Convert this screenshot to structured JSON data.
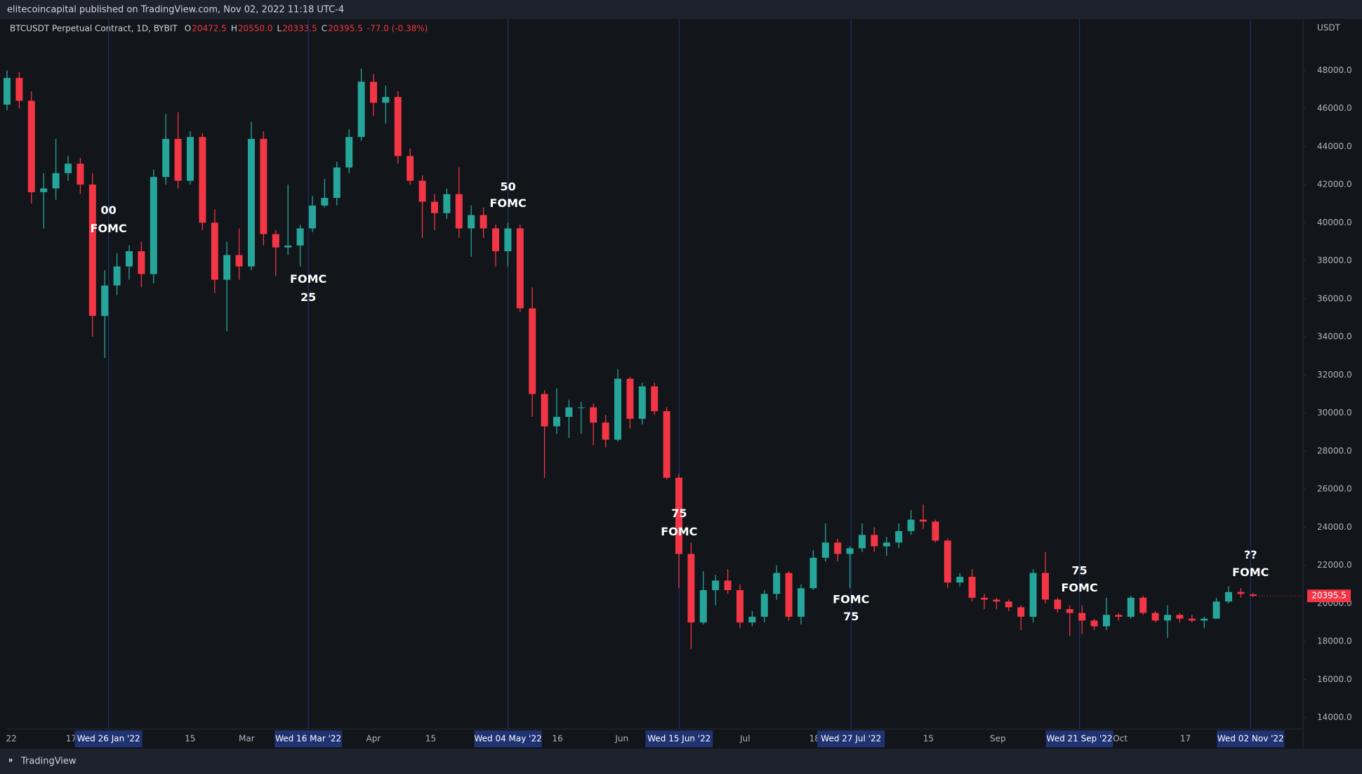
{
  "header": {
    "published": "elitecoincapital published on TradingView.com, Nov 02, 2022 11:18 UTC-4",
    "footer": "TradingView"
  },
  "chart_data": {
    "type": "candlestick",
    "symbol": "BTCUSDT Perpetual Contract, 1D, BYBIT",
    "legend_values": [
      {
        "key": "O",
        "text": "20472.5"
      },
      {
        "key": "H",
        "text": "20550.0"
      },
      {
        "key": "L",
        "text": "20333.5"
      },
      {
        "key": "C",
        "text": "20395.5"
      }
    ],
    "change": "-77.0 (-0.38%)",
    "axis_unit": "USDT",
    "last_price_label": "20395.5",
    "up_color": "#26a69a",
    "down_color": "#f23645",
    "ylim": [
      13400,
      50700
    ],
    "yticks": [
      {
        "value": 14000,
        "label": "14000.0"
      },
      {
        "value": 16000,
        "label": "16000.0"
      },
      {
        "value": 18000,
        "label": "18000.0"
      },
      {
        "value": 20000,
        "label": "20000.0"
      },
      {
        "value": 22000,
        "label": "22000.0"
      },
      {
        "value": 24000,
        "label": "24000.0"
      },
      {
        "value": 26000,
        "label": "26000.0"
      },
      {
        "value": 28000,
        "label": "28000.0"
      },
      {
        "value": 30000,
        "label": "30000.0"
      },
      {
        "value": 32000,
        "label": "32000.0"
      },
      {
        "value": 34000,
        "label": "34000.0"
      },
      {
        "value": 36000,
        "label": "36000.0"
      },
      {
        "value": 38000,
        "label": "38000.0"
      },
      {
        "value": 40000,
        "label": "40000.0"
      },
      {
        "value": 42000,
        "label": "42000.0"
      },
      {
        "value": 44000,
        "label": "44000.0"
      },
      {
        "value": 46000,
        "label": "46000.0"
      },
      {
        "value": 48000,
        "label": "48000.0"
      }
    ],
    "grid": false,
    "xtick_labels": [
      "22",
      "17",
      "15",
      "Mar",
      "Apr",
      "15",
      "16",
      "Jun",
      "Jul",
      "18",
      "15",
      "Sep",
      "Oct",
      "17"
    ],
    "fomc_dates": [
      "Wed 26 Jan '22",
      "Wed 16 Mar '22",
      "Wed 04 May '22",
      "Wed 15 Jun '22",
      "Wed 27 Jul '22",
      "Wed 21 Sep '22",
      "Wed 02 Nov '22"
    ],
    "annotations": [
      [
        "00",
        "FOMC"
      ],
      [
        "FOMC",
        "25"
      ],
      [
        "50",
        "FOMC"
      ],
      [
        "75",
        "FOMC"
      ],
      [
        "FOMC",
        "75"
      ],
      [
        "75",
        "FOMC"
      ],
      [
        "??",
        "FOMC"
      ]
    ],
    "ohlc": [
      [
        46200,
        48000,
        45900,
        47600
      ],
      [
        47600,
        47900,
        46000,
        46400
      ],
      [
        46400,
        46900,
        41000,
        41600
      ],
      [
        41600,
        42600,
        39700,
        41800
      ],
      [
        41800,
        44400,
        41200,
        42600
      ],
      [
        42600,
        43500,
        42200,
        43100
      ],
      [
        43100,
        43400,
        41500,
        42000
      ],
      [
        42000,
        42600,
        34000,
        35100
      ],
      [
        35100,
        37500,
        32900,
        36700
      ],
      [
        36700,
        38400,
        36200,
        37700
      ],
      [
        37700,
        38800,
        37000,
        38500
      ],
      [
        38500,
        39000,
        36600,
        37300
      ],
      [
        37300,
        42800,
        36800,
        42400
      ],
      [
        42400,
        45700,
        42000,
        44400
      ],
      [
        44400,
        45800,
        41800,
        42200
      ],
      [
        42200,
        44800,
        42000,
        44500
      ],
      [
        44500,
        44700,
        39600,
        40000
      ],
      [
        40000,
        40700,
        36300,
        37000
      ],
      [
        37000,
        39000,
        34300,
        38300
      ],
      [
        38300,
        39700,
        37000,
        37700
      ],
      [
        37700,
        45300,
        37500,
        44400
      ],
      [
        44400,
        44800,
        38800,
        39400
      ],
      [
        39400,
        39600,
        37200,
        38700
      ],
      [
        38700,
        42000,
        38300,
        38800
      ],
      [
        38800,
        39900,
        37700,
        39700
      ],
      [
        39700,
        41400,
        39500,
        40900
      ],
      [
        40900,
        42300,
        40800,
        41300
      ],
      [
        41300,
        43200,
        40900,
        42900
      ],
      [
        42900,
        44900,
        42600,
        44500
      ],
      [
        44500,
        48100,
        44300,
        47400
      ],
      [
        47400,
        47800,
        45600,
        46300
      ],
      [
        46300,
        47200,
        45200,
        46600
      ],
      [
        46600,
        46900,
        43100,
        43500
      ],
      [
        43500,
        43900,
        42000,
        42200
      ],
      [
        42200,
        42500,
        39200,
        41100
      ],
      [
        41100,
        41500,
        39600,
        40500
      ],
      [
        40500,
        41800,
        40200,
        41500
      ],
      [
        41500,
        42900,
        39200,
        39700
      ],
      [
        39700,
        40900,
        38200,
        40400
      ],
      [
        40400,
        40800,
        39200,
        39700
      ],
      [
        39700,
        39900,
        37700,
        38500
      ],
      [
        38500,
        40000,
        37700,
        39700
      ],
      [
        39700,
        39900,
        35300,
        35500
      ],
      [
        35500,
        36600,
        29800,
        31000
      ],
      [
        31000,
        31200,
        26600,
        29300
      ],
      [
        29300,
        31300,
        28900,
        29800
      ],
      [
        29800,
        30700,
        28700,
        30300
      ],
      [
        30300,
        30600,
        28900,
        30300
      ],
      [
        30300,
        30500,
        28300,
        29500
      ],
      [
        29500,
        29900,
        28200,
        28600
      ],
      [
        28600,
        32300,
        28500,
        31800
      ],
      [
        31800,
        31900,
        29200,
        29700
      ],
      [
        29700,
        31600,
        29400,
        31400
      ],
      [
        31400,
        31600,
        29900,
        30100
      ],
      [
        30100,
        30300,
        26500,
        26600
      ],
      [
        26600,
        26800,
        20800,
        22600
      ],
      [
        22600,
        23200,
        17600,
        19000
      ],
      [
        19000,
        21700,
        18900,
        20700
      ],
      [
        20700,
        21500,
        19900,
        21200
      ],
      [
        21200,
        21800,
        20500,
        20700
      ],
      [
        20700,
        21000,
        18700,
        19000
      ],
      [
        19000,
        19600,
        18800,
        19300
      ],
      [
        19300,
        20700,
        19000,
        20500
      ],
      [
        20500,
        22000,
        20200,
        21600
      ],
      [
        21600,
        21700,
        19100,
        19300
      ],
      [
        19300,
        21000,
        18900,
        20800
      ],
      [
        20800,
        22800,
        20700,
        22400
      ],
      [
        22400,
        24200,
        22200,
        23200
      ],
      [
        23200,
        23400,
        22200,
        22600
      ],
      [
        22600,
        23000,
        20800,
        22900
      ],
      [
        22900,
        24200,
        22700,
        23600
      ],
      [
        23600,
        24000,
        22700,
        23000
      ],
      [
        23000,
        23500,
        22500,
        23200
      ],
      [
        23200,
        24200,
        22900,
        23800
      ],
      [
        23800,
        24900,
        23600,
        24400
      ],
      [
        24400,
        25200,
        23900,
        24300
      ],
      [
        24300,
        24400,
        23200,
        23300
      ],
      [
        23300,
        23400,
        20800,
        21100
      ],
      [
        21100,
        21600,
        20900,
        21400
      ],
      [
        21400,
        21800,
        20100,
        20300
      ],
      [
        20300,
        20500,
        19700,
        20200
      ],
      [
        20200,
        20300,
        19700,
        20100
      ],
      [
        20100,
        20200,
        19600,
        19800
      ],
      [
        19800,
        19900,
        18600,
        19300
      ],
      [
        19300,
        21800,
        19000,
        21600
      ],
      [
        21600,
        22700,
        20000,
        20200
      ],
      [
        20200,
        20300,
        19500,
        19700
      ],
      [
        19700,
        19900,
        18300,
        19500
      ],
      [
        19500,
        19900,
        18400,
        19100
      ],
      [
        19100,
        19200,
        18600,
        18800
      ],
      [
        18800,
        20300,
        18600,
        19400
      ],
      [
        19400,
        19500,
        19100,
        19300
      ],
      [
        19300,
        20400,
        19200,
        20300
      ],
      [
        20300,
        20400,
        19400,
        19500
      ],
      [
        19500,
        19600,
        19000,
        19100
      ],
      [
        19100,
        19900,
        18200,
        19400
      ],
      [
        19400,
        19500,
        19000,
        19200
      ],
      [
        19200,
        19400,
        19000,
        19100
      ],
      [
        19100,
        19300,
        18700,
        19200
      ],
      [
        19200,
        20300,
        19200,
        20100
      ],
      [
        20100,
        20900,
        20000,
        20600
      ],
      [
        20600,
        20800,
        20300,
        20500
      ],
      [
        20472.5,
        20550,
        20333.5,
        20395.5
      ]
    ]
  }
}
